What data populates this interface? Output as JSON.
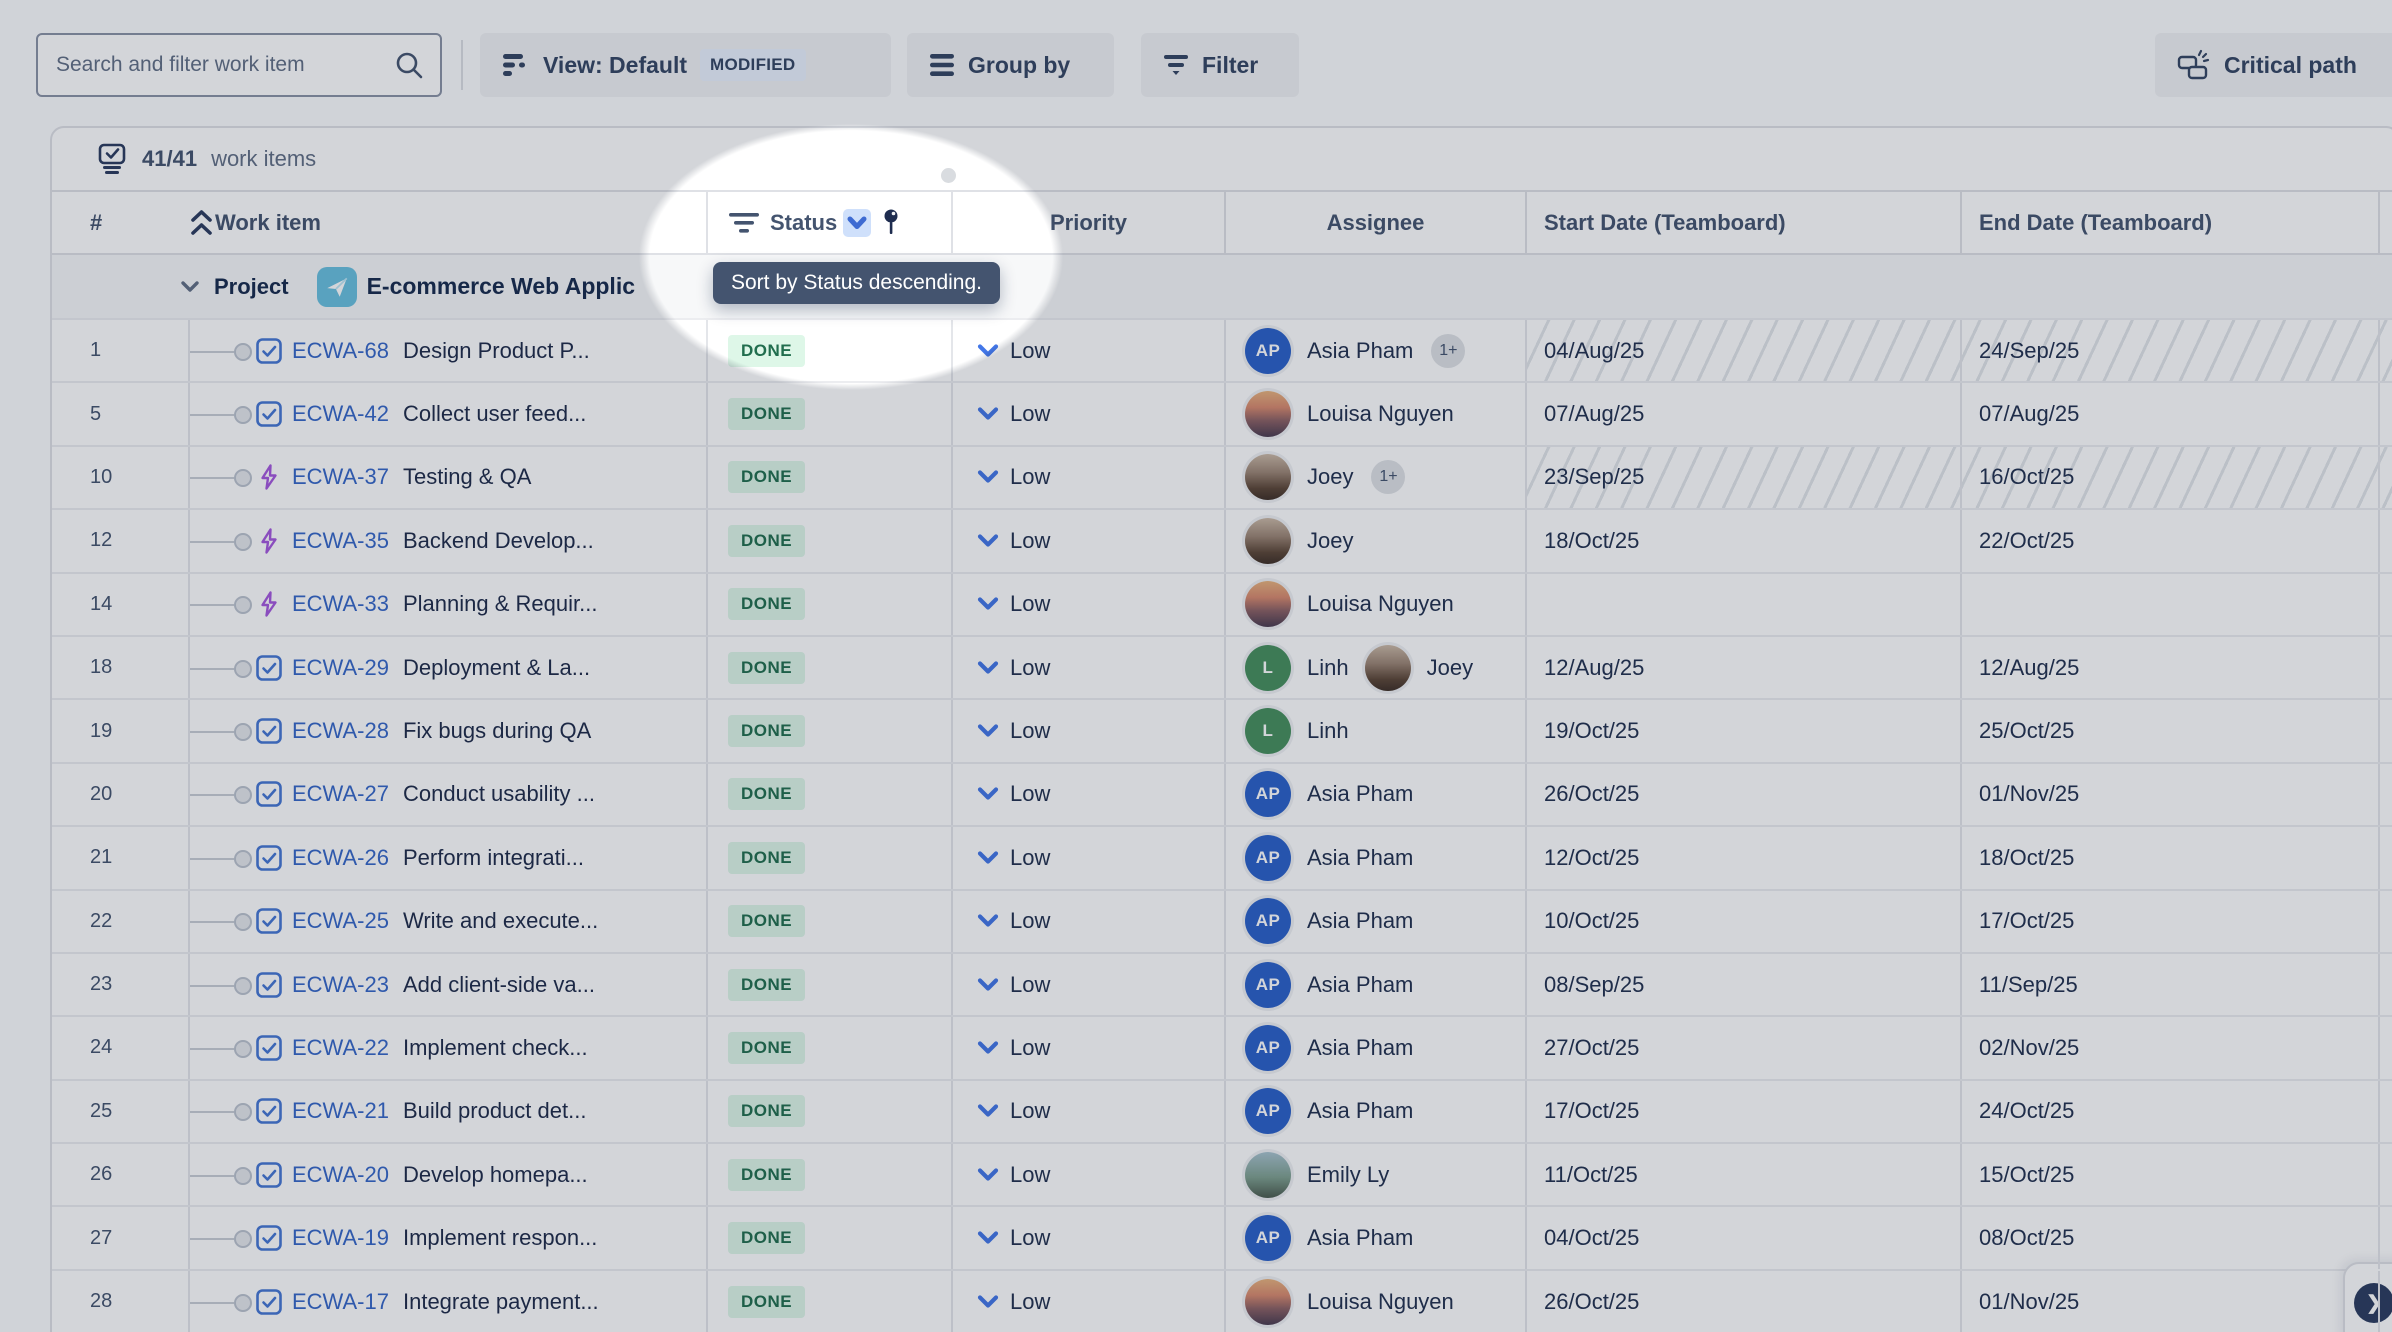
{
  "toolbar": {
    "search_placeholder": "Search and filter work item",
    "view_label": "View: Default",
    "modified_badge": "MODIFIED",
    "group_by_label": "Group by",
    "filter_label": "Filter",
    "critical_path_label": "Critical path"
  },
  "items_bar": {
    "count": "41/41",
    "suffix": "work items"
  },
  "columns": {
    "num": "#",
    "work_item": "Work item",
    "status": "Status",
    "priority": "Priority",
    "assignee": "Assignee",
    "start": "Start Date (Teamboard)",
    "end": "End Date (Teamboard)"
  },
  "group": {
    "type_label": "Project",
    "name": "E-commerce Web Applic"
  },
  "tooltip": {
    "text": "Sort by Status descending."
  },
  "fab": {
    "chevron": "❯"
  },
  "colors": {
    "accent_blue": "#3667C8",
    "priority_blue": "#4377E8",
    "task_blue": "#4577D4",
    "epic_purple": "#A558DE",
    "done_bg": "#DEF7E8",
    "done_text": "#216E4E",
    "tooltip_bg": "#44546F",
    "avatar_ap": "#2B61C9",
    "avatar_linh": "#478F5D",
    "project_icon_bg": "#69C0DF",
    "sort_chip_bg": "#CFE0FB"
  },
  "rows": [
    {
      "num": "1",
      "type": "task",
      "key": "ECWA-68",
      "summary": "Design Product P...",
      "status": "DONE",
      "priority": "Low",
      "assignees": [
        {
          "avatar": {
            "kind": "initials",
            "text": "AP",
            "color": "#2B61C9"
          },
          "name": "Asia Pham"
        }
      ],
      "overflow": "1+",
      "start": "04/Aug/25",
      "end": "24/Sep/25",
      "hatched": true
    },
    {
      "num": "5",
      "type": "task",
      "key": "ECWA-42",
      "summary": "Collect user feed...",
      "status": "DONE",
      "priority": "Low",
      "assignees": [
        {
          "avatar": {
            "kind": "photo",
            "style": "sunset"
          },
          "name": "Louisa Nguyen"
        }
      ],
      "overflow": null,
      "start": "07/Aug/25",
      "end": "07/Aug/25",
      "hatched": false
    },
    {
      "num": "10",
      "type": "epic",
      "key": "ECWA-37",
      "summary": "Testing & QA",
      "status": "DONE",
      "priority": "Low",
      "assignees": [
        {
          "avatar": {
            "kind": "photo",
            "style": "portrait"
          },
          "name": "Joey"
        }
      ],
      "overflow": "1+",
      "start": "23/Sep/25",
      "end": "16/Oct/25",
      "hatched": true
    },
    {
      "num": "12",
      "type": "epic",
      "key": "ECWA-35",
      "summary": "Backend Develop...",
      "status": "DONE",
      "priority": "Low",
      "assignees": [
        {
          "avatar": {
            "kind": "photo",
            "style": "portrait"
          },
          "name": "Joey"
        }
      ],
      "overflow": null,
      "start": "18/Oct/25",
      "end": "22/Oct/25",
      "hatched": false
    },
    {
      "num": "14",
      "type": "epic",
      "key": "ECWA-33",
      "summary": "Planning & Requir...",
      "status": "DONE",
      "priority": "Low",
      "assignees": [
        {
          "avatar": {
            "kind": "photo",
            "style": "sunset"
          },
          "name": "Louisa Nguyen"
        }
      ],
      "overflow": null,
      "start": "",
      "end": "",
      "hatched": false
    },
    {
      "num": "18",
      "type": "task",
      "key": "ECWA-29",
      "summary": "Deployment & La...",
      "status": "DONE",
      "priority": "Low",
      "assignees": [
        {
          "avatar": {
            "kind": "initials",
            "text": "L",
            "color": "#478F5D"
          },
          "name": "Linh"
        },
        {
          "avatar": {
            "kind": "photo",
            "style": "portrait"
          },
          "name": "Joey"
        }
      ],
      "overflow": null,
      "start": "12/Aug/25",
      "end": "12/Aug/25",
      "hatched": false
    },
    {
      "num": "19",
      "type": "task",
      "key": "ECWA-28",
      "summary": "Fix bugs during QA",
      "status": "DONE",
      "priority": "Low",
      "assignees": [
        {
          "avatar": {
            "kind": "initials",
            "text": "L",
            "color": "#478F5D"
          },
          "name": "Linh"
        }
      ],
      "overflow": null,
      "start": "19/Oct/25",
      "end": "25/Oct/25",
      "hatched": false
    },
    {
      "num": "20",
      "type": "task",
      "key": "ECWA-27",
      "summary": "Conduct usability ...",
      "status": "DONE",
      "priority": "Low",
      "assignees": [
        {
          "avatar": {
            "kind": "initials",
            "text": "AP",
            "color": "#2B61C9"
          },
          "name": "Asia Pham"
        }
      ],
      "overflow": null,
      "start": "26/Oct/25",
      "end": "01/Nov/25",
      "hatched": false
    },
    {
      "num": "21",
      "type": "task",
      "key": "ECWA-26",
      "summary": "Perform integrati...",
      "status": "DONE",
      "priority": "Low",
      "assignees": [
        {
          "avatar": {
            "kind": "initials",
            "text": "AP",
            "color": "#2B61C9"
          },
          "name": "Asia Pham"
        }
      ],
      "overflow": null,
      "start": "12/Oct/25",
      "end": "18/Oct/25",
      "hatched": false
    },
    {
      "num": "22",
      "type": "task",
      "key": "ECWA-25",
      "summary": "Write and execute...",
      "status": "DONE",
      "priority": "Low",
      "assignees": [
        {
          "avatar": {
            "kind": "initials",
            "text": "AP",
            "color": "#2B61C9"
          },
          "name": "Asia Pham"
        }
      ],
      "overflow": null,
      "start": "10/Oct/25",
      "end": "17/Oct/25",
      "hatched": false
    },
    {
      "num": "23",
      "type": "task",
      "key": "ECWA-23",
      "summary": "Add client-side va...",
      "status": "DONE",
      "priority": "Low",
      "assignees": [
        {
          "avatar": {
            "kind": "initials",
            "text": "AP",
            "color": "#2B61C9"
          },
          "name": "Asia Pham"
        }
      ],
      "overflow": null,
      "start": "08/Sep/25",
      "end": "11/Sep/25",
      "hatched": false
    },
    {
      "num": "24",
      "type": "task",
      "key": "ECWA-22",
      "summary": "Implement check...",
      "status": "DONE",
      "priority": "Low",
      "assignees": [
        {
          "avatar": {
            "kind": "initials",
            "text": "AP",
            "color": "#2B61C9"
          },
          "name": "Asia Pham"
        }
      ],
      "overflow": null,
      "start": "27/Oct/25",
      "end": "02/Nov/25",
      "hatched": false
    },
    {
      "num": "25",
      "type": "task",
      "key": "ECWA-21",
      "summary": "Build product det...",
      "status": "DONE",
      "priority": "Low",
      "assignees": [
        {
          "avatar": {
            "kind": "initials",
            "text": "AP",
            "color": "#2B61C9"
          },
          "name": "Asia Pham"
        }
      ],
      "overflow": null,
      "start": "17/Oct/25",
      "end": "24/Oct/25",
      "hatched": false
    },
    {
      "num": "26",
      "type": "task",
      "key": "ECWA-20",
      "summary": "Develop homepa...",
      "status": "DONE",
      "priority": "Low",
      "assignees": [
        {
          "avatar": {
            "kind": "photo",
            "style": "mountain"
          },
          "name": "Emily Ly"
        }
      ],
      "overflow": null,
      "start": "11/Oct/25",
      "end": "15/Oct/25",
      "hatched": false
    },
    {
      "num": "27",
      "type": "task",
      "key": "ECWA-19",
      "summary": "Implement respon...",
      "status": "DONE",
      "priority": "Low",
      "assignees": [
        {
          "avatar": {
            "kind": "initials",
            "text": "AP",
            "color": "#2B61C9"
          },
          "name": "Asia Pham"
        }
      ],
      "overflow": null,
      "start": "04/Oct/25",
      "end": "08/Oct/25",
      "hatched": false
    },
    {
      "num": "28",
      "type": "task",
      "key": "ECWA-17",
      "summary": "Integrate payment...",
      "status": "DONE",
      "priority": "Low",
      "assignees": [
        {
          "avatar": {
            "kind": "photo",
            "style": "sunset"
          },
          "name": "Louisa Nguyen"
        }
      ],
      "overflow": null,
      "start": "26/Oct/25",
      "end": "01/Nov/25",
      "hatched": false
    }
  ]
}
